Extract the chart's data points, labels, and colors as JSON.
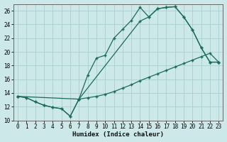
{
  "xlabel": "Humidex (Indice chaleur)",
  "background_color": "#cce8e8",
  "grid_color": "#b8d8d8",
  "line_color": "#1a6b5a",
  "xlim": [
    -0.5,
    23.5
  ],
  "ylim": [
    10,
    27
  ],
  "xticks": [
    0,
    1,
    2,
    3,
    4,
    5,
    6,
    7,
    8,
    9,
    10,
    11,
    12,
    13,
    14,
    15,
    16,
    17,
    18,
    19,
    20,
    21,
    22,
    23
  ],
  "yticks": [
    10,
    12,
    14,
    16,
    18,
    20,
    22,
    24,
    26
  ],
  "line1_x": [
    0,
    1,
    2,
    3,
    4,
    5,
    6,
    7,
    8,
    9,
    10,
    11,
    12,
    13,
    14,
    15,
    16,
    17,
    18,
    19,
    20,
    21,
    22,
    23
  ],
  "line1_y": [
    13.5,
    13.3,
    12.7,
    12.2,
    11.9,
    11.7,
    10.6,
    13.1,
    13.3,
    13.5,
    13.8,
    14.2,
    14.7,
    15.2,
    15.8,
    16.3,
    16.8,
    17.3,
    17.8,
    18.3,
    18.8,
    19.3,
    19.8,
    18.5
  ],
  "line2_x": [
    0,
    1,
    2,
    3,
    4,
    5,
    6,
    7,
    8,
    9,
    10,
    11,
    12,
    13,
    14,
    15,
    16,
    17,
    18,
    19,
    20,
    21,
    22,
    23
  ],
  "line2_y": [
    13.5,
    13.3,
    12.7,
    12.2,
    11.9,
    11.7,
    10.6,
    13.1,
    16.6,
    19.1,
    19.5,
    22.0,
    23.3,
    24.6,
    26.5,
    25.1,
    26.3,
    26.5,
    26.6,
    25.1,
    23.2,
    20.6,
    18.5,
    18.5
  ],
  "line3_x": [
    0,
    7,
    14,
    15,
    16,
    17,
    18,
    19,
    20,
    21,
    22,
    23
  ],
  "line3_y": [
    13.5,
    13.1,
    24.5,
    25.1,
    26.3,
    26.5,
    26.6,
    25.1,
    23.2,
    20.6,
    18.5,
    18.5
  ]
}
